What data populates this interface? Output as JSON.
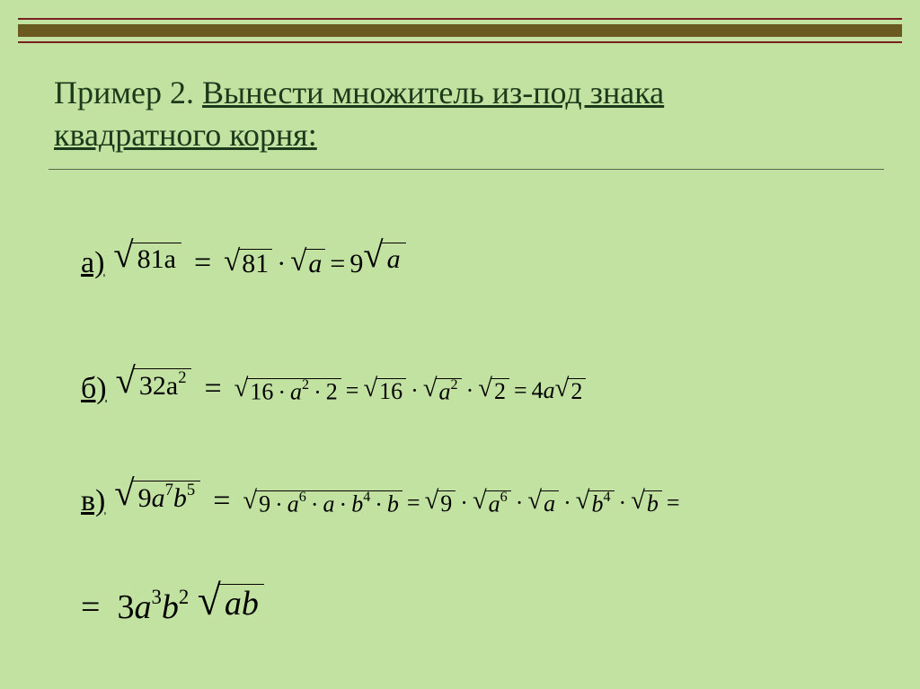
{
  "colors": {
    "background": "#c1e2a0",
    "title_text": "#1b3a1b",
    "border_line": "#7a2020",
    "border_fill": "#6a5a20",
    "rule": "#5a6a4a",
    "math": "#000000"
  },
  "typography": {
    "title_fontsize_pt": 27,
    "label_fontsize_pt": 26,
    "math_fontsize_pt": 22,
    "final_fontsize_pt": 28,
    "family": "Times New Roman"
  },
  "title": {
    "plain": "Пример 2. ",
    "underlined_line1": "Вынести множитель из-под знака",
    "underlined_line2": "квадратного корня:"
  },
  "equals": "=",
  "dot": "·",
  "items": {
    "a": {
      "label": "а)",
      "lhs": {
        "radicand": "81a"
      },
      "rhs1": {
        "f1": "81",
        "f2": "a"
      },
      "rhs2": {
        "coef": "9",
        "rad": "a"
      }
    },
    "b": {
      "label": "б)",
      "lhs": {
        "base": "32a",
        "exp": "2"
      },
      "step1": {
        "n1": "16",
        "v": "a",
        "exp": "2",
        "n2": "2"
      },
      "step2": {
        "n1": "16",
        "v": "a",
        "exp": "2",
        "n2": "2"
      },
      "rhs": {
        "coef": "4",
        "var": "a",
        "rad": "2"
      }
    },
    "c": {
      "label": "в)",
      "lhs": {
        "n": "9",
        "v1": "a",
        "e1": "7",
        "v2": "b",
        "e2": "5"
      },
      "step1": {
        "n": "9",
        "v1": "a",
        "e1": "6",
        "v1b": "a",
        "v2": "b",
        "e2": "4",
        "v2b": "b"
      },
      "step2": {
        "n": "9",
        "v1": "a",
        "e1": "6",
        "v1b": "a",
        "v2": "b",
        "e2": "4",
        "v2b": "b"
      }
    },
    "d": {
      "coef": "3",
      "v1": "a",
      "e1": "3",
      "v2": "b",
      "e2": "2",
      "rad": "ab"
    }
  }
}
